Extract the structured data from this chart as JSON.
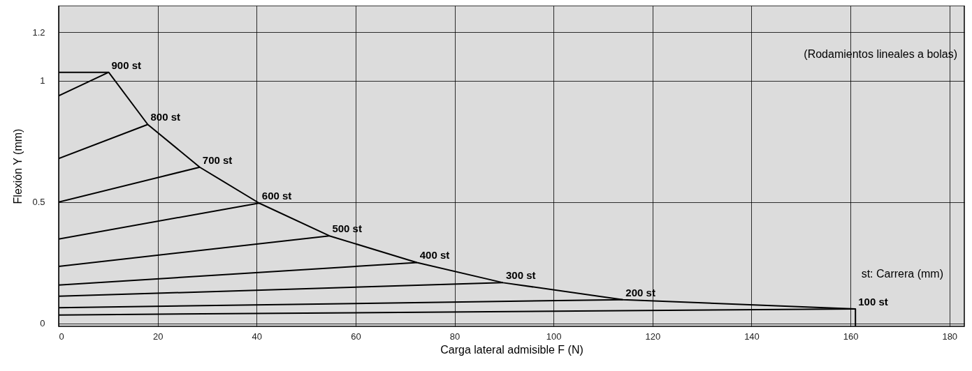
{
  "chart_data": {
    "type": "line",
    "xlabel": "Carga lateral admisible F (N)",
    "ylabel": "Flexión Y (mm)",
    "xlim": [
      0,
      183
    ],
    "ylim": [
      -0.012,
      1.31
    ],
    "xticks": [
      0,
      20,
      40,
      60,
      80,
      100,
      120,
      140,
      160,
      180
    ],
    "yticks": [
      0,
      0.5,
      1,
      1.2
    ],
    "grid": true,
    "marker": "none",
    "line_style": "solid",
    "annotations": [
      "(Rodamientos lineales a bolas)",
      "st: Carrera (mm)"
    ],
    "series": [
      {
        "name": "900 st",
        "color": "#000000",
        "x": [
          0,
          10.1
        ],
        "values": [
          0.938,
          1.035
        ]
      },
      {
        "name": "800 st",
        "color": "#000000",
        "x": [
          0,
          18.0
        ],
        "values": [
          0.68,
          0.82
        ]
      },
      {
        "name": "700 st",
        "color": "#000000",
        "x": [
          0,
          28.5
        ],
        "values": [
          0.5,
          0.644
        ]
      },
      {
        "name": "600 st",
        "color": "#000000",
        "x": [
          0,
          40.5
        ],
        "values": [
          0.348,
          0.496
        ]
      },
      {
        "name": "500 st",
        "color": "#000000",
        "x": [
          0,
          54.7
        ],
        "values": [
          0.235,
          0.361
        ]
      },
      {
        "name": "400 st",
        "color": "#000000",
        "x": [
          0,
          72.4
        ],
        "values": [
          0.158,
          0.251
        ]
      },
      {
        "name": "300 st",
        "color": "#000000",
        "x": [
          0,
          89.8
        ],
        "values": [
          0.112,
          0.168
        ]
      },
      {
        "name": "200 st",
        "color": "#000000",
        "x": [
          0,
          114
        ],
        "values": [
          0.065,
          0.098
        ]
      },
      {
        "name": "100 st",
        "color": "#000000",
        "x": [
          0,
          161
        ],
        "values": [
          0.035,
          0.06
        ]
      },
      {
        "color": "#000000",
        "x": [
          0,
          10.1,
          18.0,
          28.5,
          40.5,
          54.7,
          72.4,
          89.8,
          114,
          161,
          161
        ],
        "values": [
          1.035,
          1.035,
          0.82,
          0.644,
          0.496,
          0.361,
          0.251,
          0.168,
          0.098,
          0.06,
          -0.012
        ]
      }
    ]
  }
}
